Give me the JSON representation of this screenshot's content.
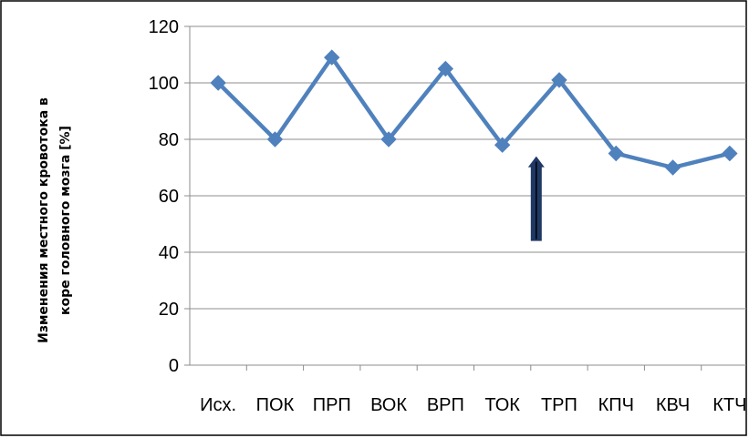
{
  "chart_data": {
    "type": "line",
    "title": "",
    "xlabel": "",
    "ylabel_line1": "Изменения местного кровотока в",
    "ylabel_line2": "коре головного мозга [%]",
    "categories": [
      "Исх.",
      "ПОК",
      "ПРП",
      "ВОК",
      "ВРП",
      "ТОК",
      "ТРП",
      "КПЧ",
      "КВЧ",
      "КТЧ"
    ],
    "series": [
      {
        "values": [
          100,
          80,
          109,
          80,
          105,
          78,
          101,
          75,
          70,
          75
        ],
        "color": "#4f81bd"
      }
    ],
    "ylim": [
      0,
      120
    ],
    "yticks": [
      0,
      20,
      40,
      60,
      80,
      100,
      120
    ],
    "grid": true,
    "legend": "none",
    "annotation": {
      "type": "up-arrow",
      "category_between": [
        "ТОК",
        "ТРП"
      ],
      "from_value": 44,
      "to_value": 74,
      "color": "#1f3864"
    }
  }
}
